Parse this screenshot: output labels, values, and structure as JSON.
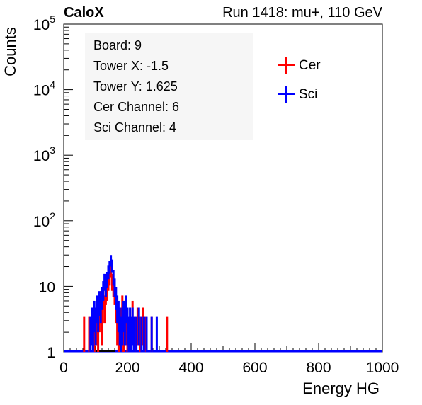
{
  "header": {
    "left_title": "CaloX",
    "right_title": "Run 1418: mu+, 110 GeV"
  },
  "info_box": {
    "lines": [
      "Board: 9",
      "Tower X: -1.5",
      "Tower Y: 1.625",
      "Cer Channel: 6",
      "Sci Channel: 4"
    ]
  },
  "legend": {
    "placement": "top-right",
    "entries": [
      {
        "label": "Cer",
        "color": "#ff0000"
      },
      {
        "label": "Sci",
        "color": "#0000ff"
      }
    ]
  },
  "chart_data": {
    "type": "histogram",
    "xlabel": "Energy HG",
    "ylabel": "Counts",
    "xlim": [
      0,
      1000
    ],
    "ylim": [
      1,
      100000
    ],
    "yscale": "log",
    "grid": false,
    "x_ticks": [
      "0",
      "200",
      "400",
      "600",
      "800",
      "1000"
    ],
    "y_ticks": [
      "1",
      "10",
      "10^2",
      "10^3",
      "10^4",
      "10^5"
    ],
    "series": [
      {
        "name": "Cer",
        "color": "#ff0000",
        "points": [
          [
            64,
            2
          ],
          [
            80,
            2
          ],
          [
            96,
            2
          ],
          [
            100,
            3
          ],
          [
            104,
            3
          ],
          [
            108,
            2
          ],
          [
            112,
            4
          ],
          [
            116,
            6
          ],
          [
            120,
            3
          ],
          [
            124,
            7
          ],
          [
            128,
            5
          ],
          [
            132,
            8
          ],
          [
            136,
            9
          ],
          [
            140,
            12
          ],
          [
            144,
            14
          ],
          [
            148,
            18
          ],
          [
            152,
            12
          ],
          [
            156,
            10
          ],
          [
            160,
            8
          ],
          [
            164,
            5
          ],
          [
            168,
            3
          ],
          [
            172,
            2
          ],
          [
            176,
            2
          ],
          [
            180,
            3
          ],
          [
            184,
            5
          ],
          [
            188,
            2
          ],
          [
            192,
            4
          ],
          [
            196,
            3
          ],
          [
            200,
            2
          ],
          [
            208,
            2
          ],
          [
            216,
            4
          ],
          [
            224,
            2
          ],
          [
            232,
            3
          ],
          [
            240,
            2
          ],
          [
            248,
            3
          ],
          [
            256,
            2
          ],
          [
            276,
            2
          ],
          [
            324,
            2
          ]
        ]
      },
      {
        "name": "Sci",
        "color": "#0000ff",
        "points": [
          [
            84,
            2
          ],
          [
            88,
            3
          ],
          [
            92,
            2
          ],
          [
            96,
            4
          ],
          [
            100,
            3
          ],
          [
            104,
            5
          ],
          [
            108,
            4
          ],
          [
            112,
            6
          ],
          [
            116,
            5
          ],
          [
            120,
            7
          ],
          [
            124,
            9
          ],
          [
            128,
            12
          ],
          [
            132,
            10
          ],
          [
            136,
            13
          ],
          [
            140,
            17
          ],
          [
            144,
            20
          ],
          [
            148,
            25
          ],
          [
            152,
            21
          ],
          [
            156,
            14
          ],
          [
            160,
            10
          ],
          [
            164,
            7
          ],
          [
            168,
            5
          ],
          [
            172,
            4
          ],
          [
            176,
            3
          ],
          [
            180,
            2
          ],
          [
            184,
            3
          ],
          [
            188,
            4
          ],
          [
            192,
            3
          ],
          [
            196,
            5
          ],
          [
            200,
            3
          ],
          [
            204,
            2
          ],
          [
            208,
            3
          ],
          [
            212,
            2
          ],
          [
            216,
            3
          ],
          [
            220,
            2
          ],
          [
            228,
            2
          ],
          [
            236,
            3
          ],
          [
            244,
            2
          ],
          [
            252,
            2
          ],
          [
            260,
            2
          ],
          [
            276,
            2
          ],
          [
            292,
            2
          ]
        ]
      }
    ]
  }
}
